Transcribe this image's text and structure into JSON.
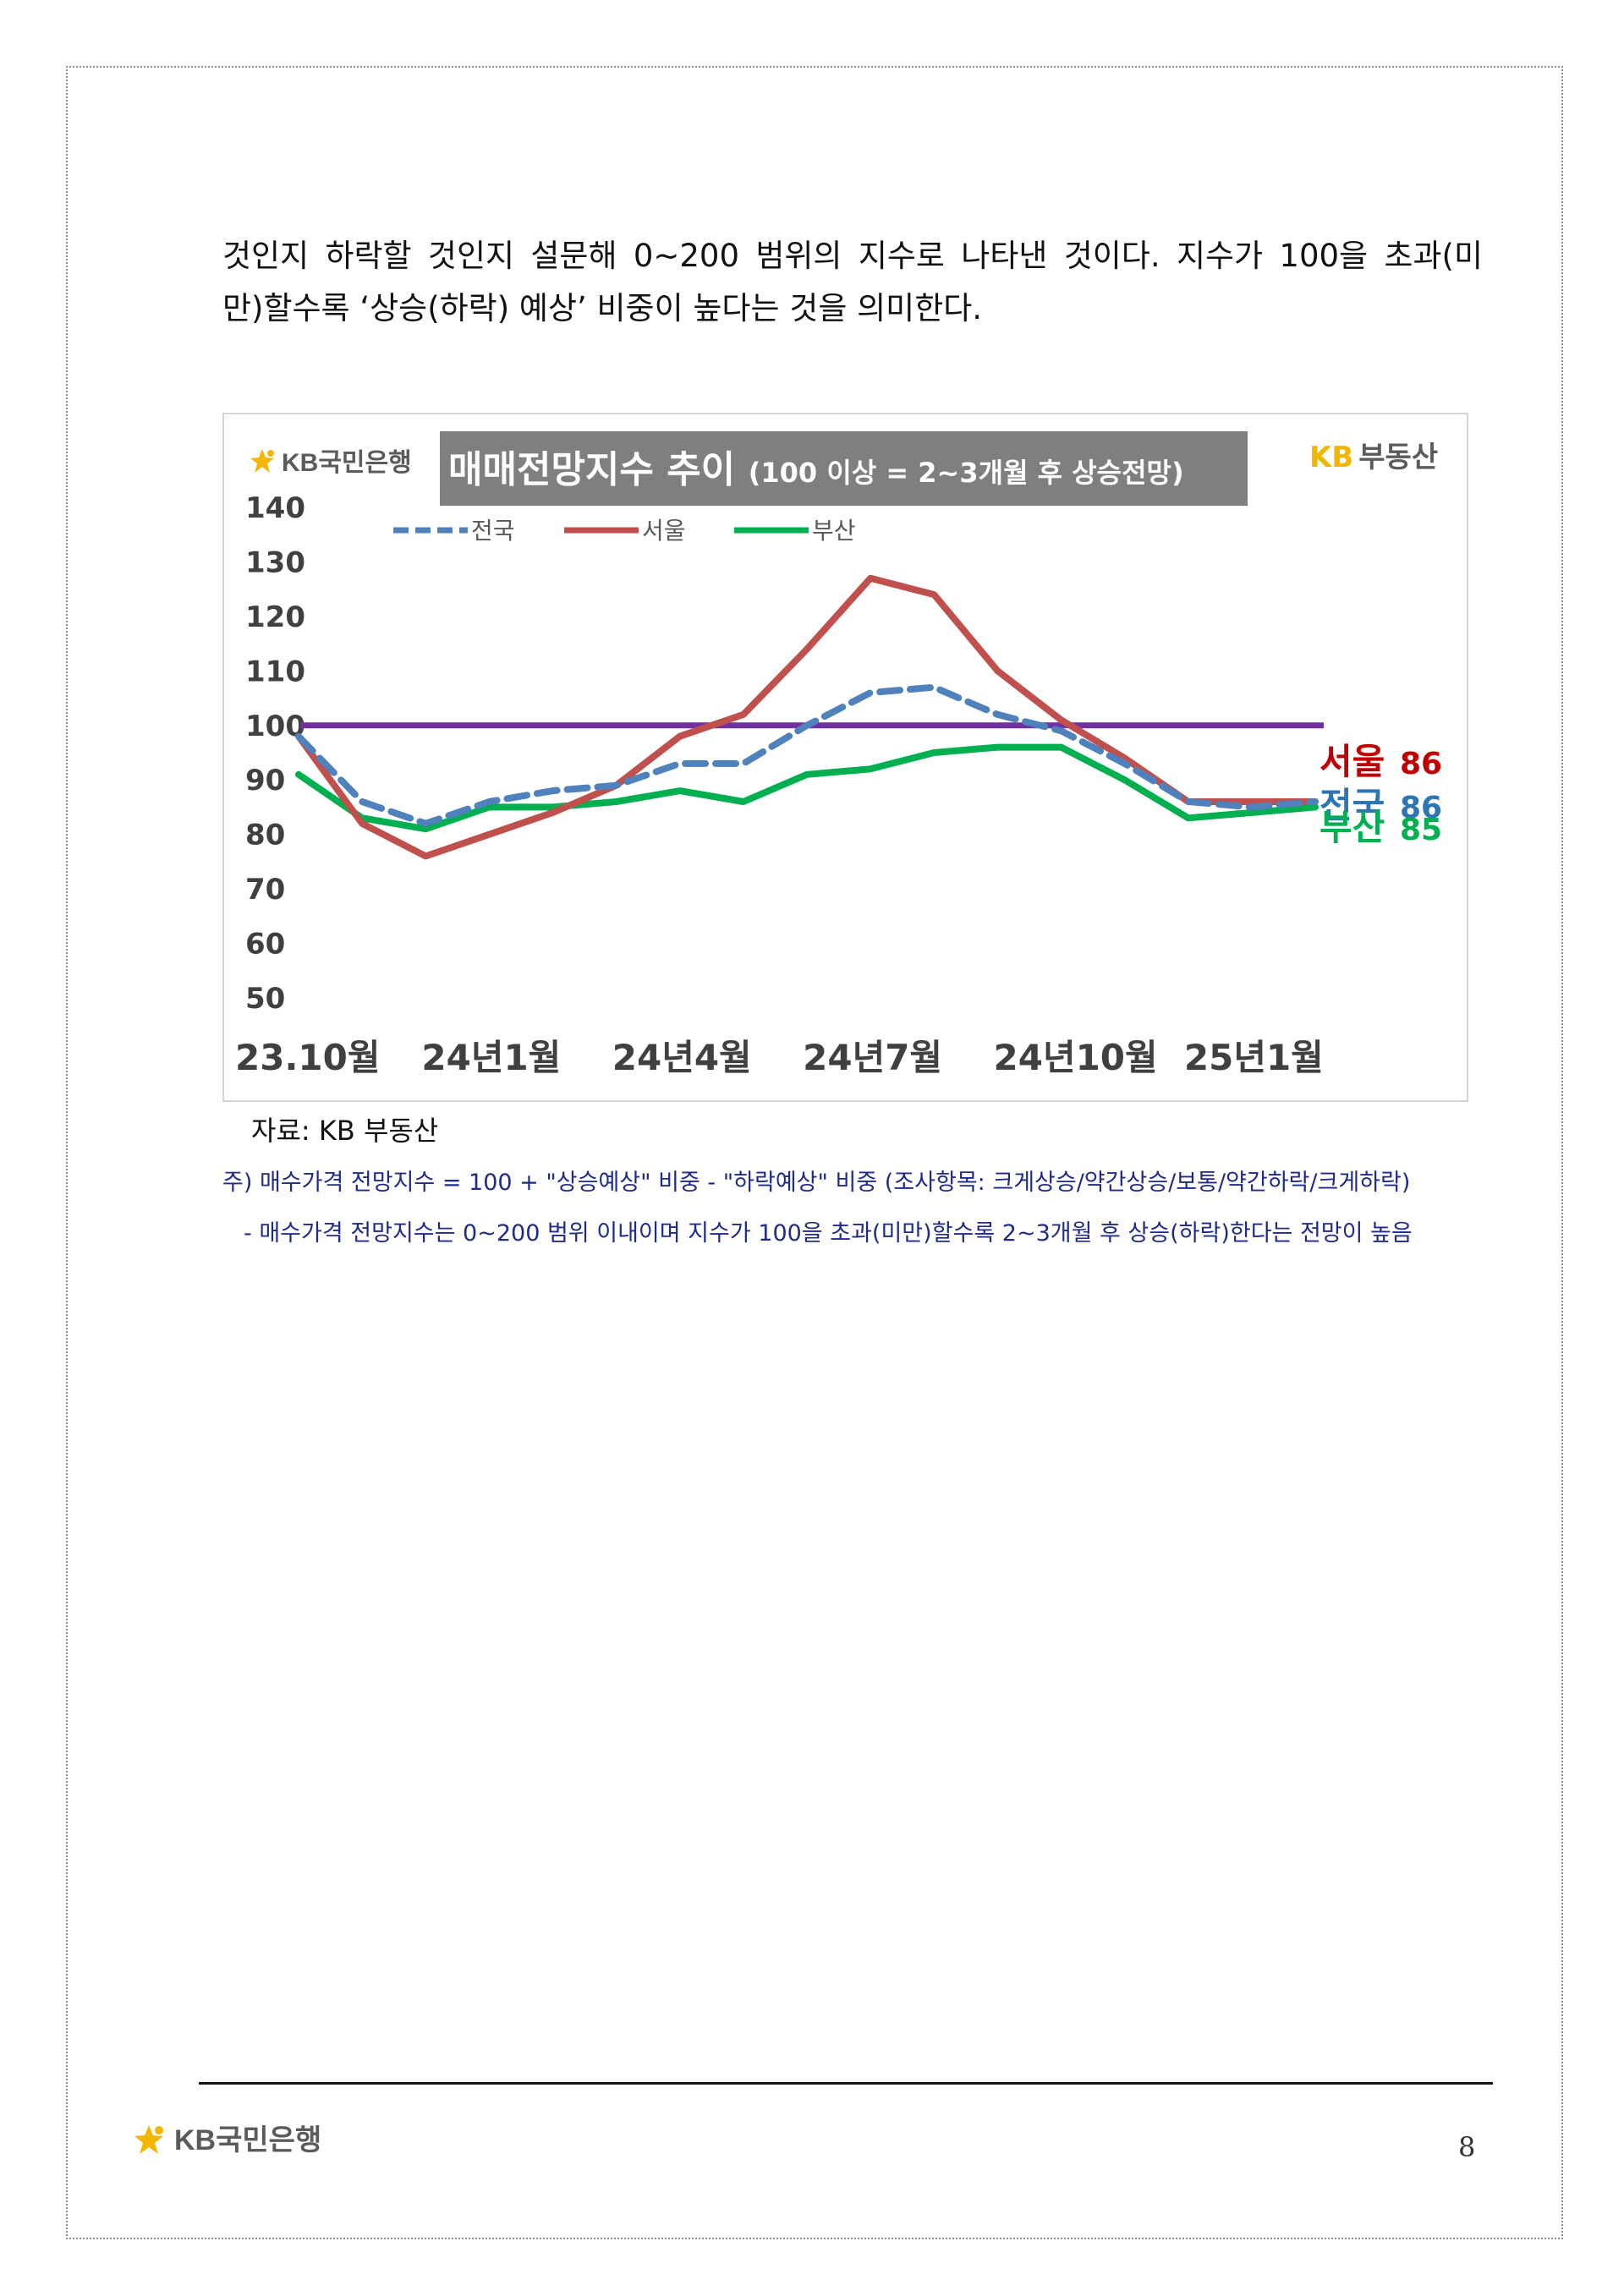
{
  "body_text": {
    "line1": "것인지 하락할 것인지 설문해 0~200 범위의 지수로 나타낸 것이다. 지수가 100을 초과(미",
    "line2": "만)할수록 ‘상승(하락) 예상’ 비중이 높다는 것을 의미한다."
  },
  "chart": {
    "bank_logo_text": "KB국민은행",
    "title_main": "매매전망지수 추이",
    "title_sub": "(100 이상 = 2~3개월 후 상승전망)",
    "brand_logo": {
      "kb": "KB",
      "name": "부동산"
    }
  },
  "chart_data": {
    "type": "line",
    "title": "매매전망지수 추이 (100 이상 = 2~3개월 후 상승전망)",
    "ylim": [
      50,
      140
    ],
    "yticks": [
      "140",
      "130",
      "120",
      "110",
      "100",
      "90",
      "80",
      "70",
      "60",
      "50"
    ],
    "xtick_labels": [
      "23.10월",
      "24년1월",
      "24년4월",
      "24년7월",
      "24년10월",
      "25년1월"
    ],
    "x": [
      "23.10",
      "23.11",
      "23.12",
      "24.01",
      "24.02",
      "24.03",
      "24.04",
      "24.05",
      "24.06",
      "24.07",
      "24.08",
      "24.09",
      "24.10",
      "24.11",
      "24.12",
      "25.01",
      "25.02"
    ],
    "reference_line": 100,
    "legend_position": "top-left",
    "grid": false,
    "series": [
      {
        "name": "전국",
        "color": "#4f81bd",
        "dash": true,
        "values": [
          98,
          86,
          82,
          86,
          88,
          89,
          93,
          93,
          100,
          106,
          107,
          102,
          99,
          93,
          86,
          85,
          86
        ],
        "end_label": "전국",
        "end_value": "86"
      },
      {
        "name": "서울",
        "color": "#c0504d",
        "dash": false,
        "values": [
          98,
          82,
          76,
          80,
          84,
          89,
          98,
          102,
          114,
          127,
          124,
          110,
          101,
          94,
          86,
          86,
          86
        ],
        "end_label": "서울",
        "end_value": "86"
      },
      {
        "name": "부산",
        "color": "#00b050",
        "dash": false,
        "values": [
          91,
          83,
          81,
          85,
          85,
          86,
          88,
          86,
          91,
          92,
          95,
          96,
          96,
          90,
          83,
          84,
          85
        ],
        "end_label": "부산",
        "end_value": "85"
      }
    ],
    "reference_color": "#7030a0"
  },
  "source": "자료: KB 부동산",
  "notes": {
    "note1": "주) 매수가격 전망지수 = 100 + \"상승예상\" 비중 - \"하락예상\" 비중 (조사항목: 크게상승/약간상승/보통/약간하락/크게하락)",
    "note2": "- 매수가격 전망지수는 0~200 범위 이내이며 지수가 100을 초과(미만)할수록 2~3개월 후 상승(하락)한다는 전망이 높음"
  },
  "footer": {
    "logo_text": "KB국민은행",
    "page_number": "8"
  }
}
